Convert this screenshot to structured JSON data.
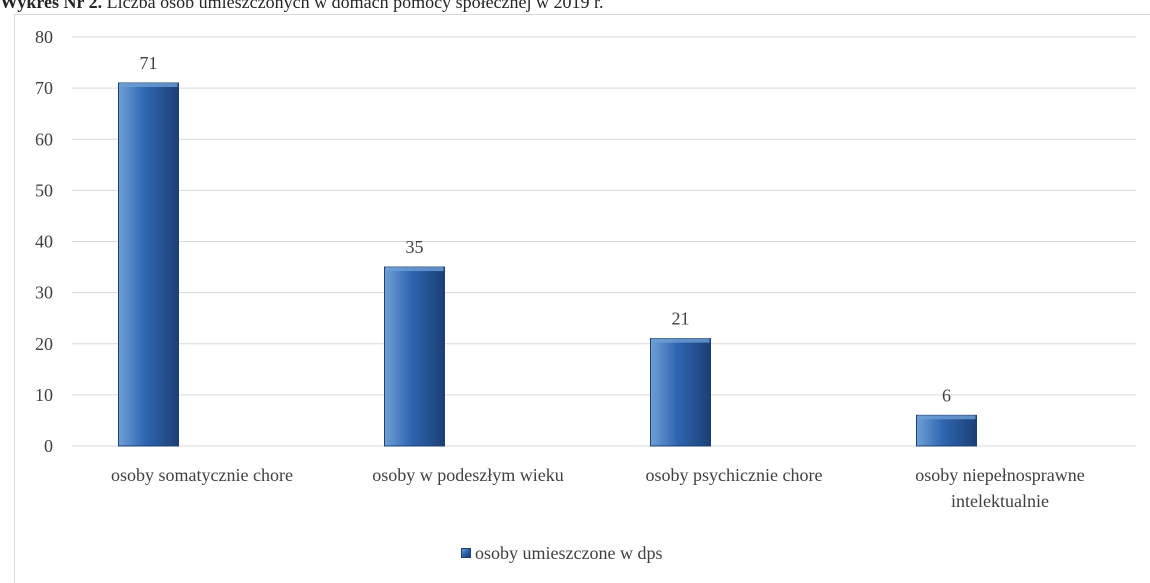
{
  "caption": {
    "lead": "Wykres Nr 2.",
    "text": "Liczba osób umieszczonych w domach pomocy społecznej w 2019 r."
  },
  "colors": {
    "bar_light": "#6f9fd6",
    "bar_mid": "#2e65b0",
    "bar_dark": "#1c3f74",
    "grid": "#d9d9d9"
  },
  "chart_data": {
    "type": "bar",
    "categories": [
      [
        "osoby somatycznie chore"
      ],
      [
        "osoby w podeszłym wieku"
      ],
      [
        "osoby psychicznie chore"
      ],
      [
        "osoby niepełnosprawne",
        "intelektualnie"
      ]
    ],
    "series": [
      {
        "name": "osoby umieszczone w dps",
        "values": [
          71,
          35,
          21,
          6
        ]
      }
    ],
    "yticks": [
      "0",
      "10",
      "20",
      "30",
      "40",
      "50",
      "60",
      "70",
      "80"
    ],
    "ylim": [
      0,
      80
    ],
    "grid": true,
    "legend_position": "bottom"
  }
}
